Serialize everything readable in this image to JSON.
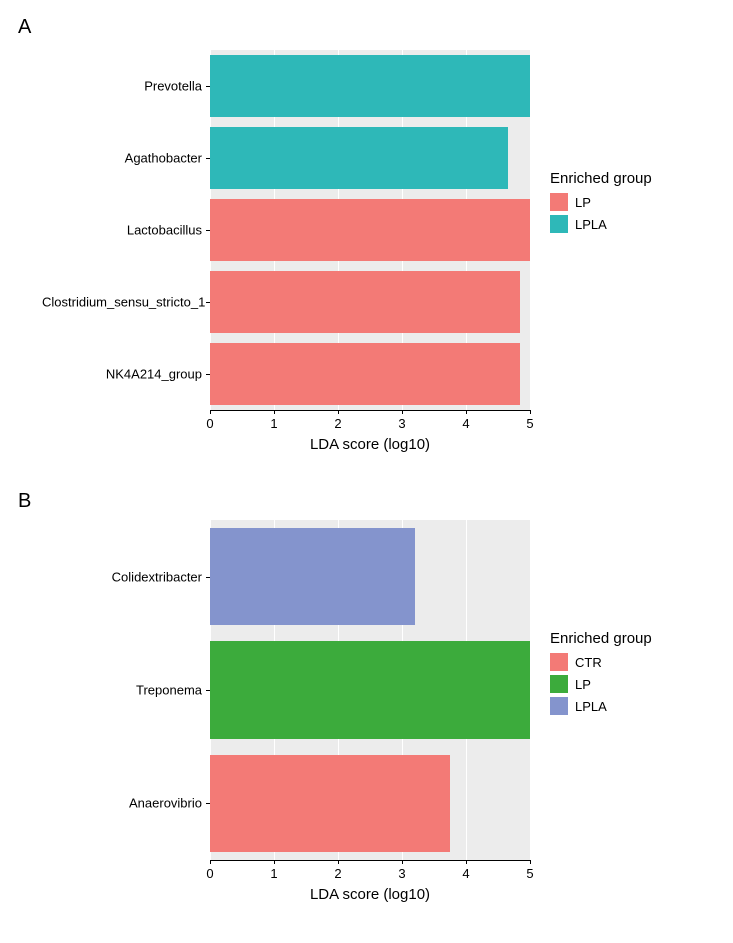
{
  "panelA": {
    "label": "A",
    "type": "bar",
    "xaxis_title": "LDA score (log10)",
    "xlim": [
      0,
      5
    ],
    "xtick_step": 1,
    "background_color": "#ececec",
    "grid_color": "#ffffff",
    "label_fontsize": 13,
    "title_fontsize": 15,
    "bars": [
      {
        "label": "Prevotella",
        "value": 5.0,
        "group": "LPLA",
        "color": "#2eb8b8"
      },
      {
        "label": "Agathobacter",
        "value": 4.65,
        "group": "LPLA",
        "color": "#2eb8b8"
      },
      {
        "label": "Lactobacillus",
        "value": 5.3,
        "group": "LP",
        "color": "#f37a76"
      },
      {
        "label": "Clostridium_sensu_stricto_1",
        "value": 4.85,
        "group": "LP",
        "color": "#f37a76"
      },
      {
        "label": "NK4A214_group",
        "value": 4.85,
        "group": "LP",
        "color": "#f37a76"
      }
    ],
    "legend": {
      "title": "Enriched group",
      "items": [
        {
          "label": "LP",
          "color": "#f37a76"
        },
        {
          "label": "LPLA",
          "color": "#2eb8b8"
        }
      ]
    }
  },
  "panelB": {
    "label": "B",
    "type": "bar",
    "xaxis_title": "LDA score (log10)",
    "xlim": [
      0,
      5
    ],
    "xtick_step": 1,
    "background_color": "#ececec",
    "grid_color": "#ffffff",
    "label_fontsize": 13,
    "title_fontsize": 15,
    "bars": [
      {
        "label": "Colidextribacter",
        "value": 3.2,
        "group": "LPLA",
        "color": "#8494cd"
      },
      {
        "label": "Treponema",
        "value": 5.4,
        "group": "LP",
        "color": "#3cab3c"
      },
      {
        "label": "Anaerovibrio",
        "value": 3.75,
        "group": "CTR",
        "color": "#f37a76"
      }
    ],
    "legend": {
      "title": "Enriched group",
      "items": [
        {
          "label": "CTR",
          "color": "#f37a76"
        },
        {
          "label": "LP",
          "color": "#3cab3c"
        },
        {
          "label": "LPLA",
          "color": "#8494cd"
        }
      ]
    }
  }
}
